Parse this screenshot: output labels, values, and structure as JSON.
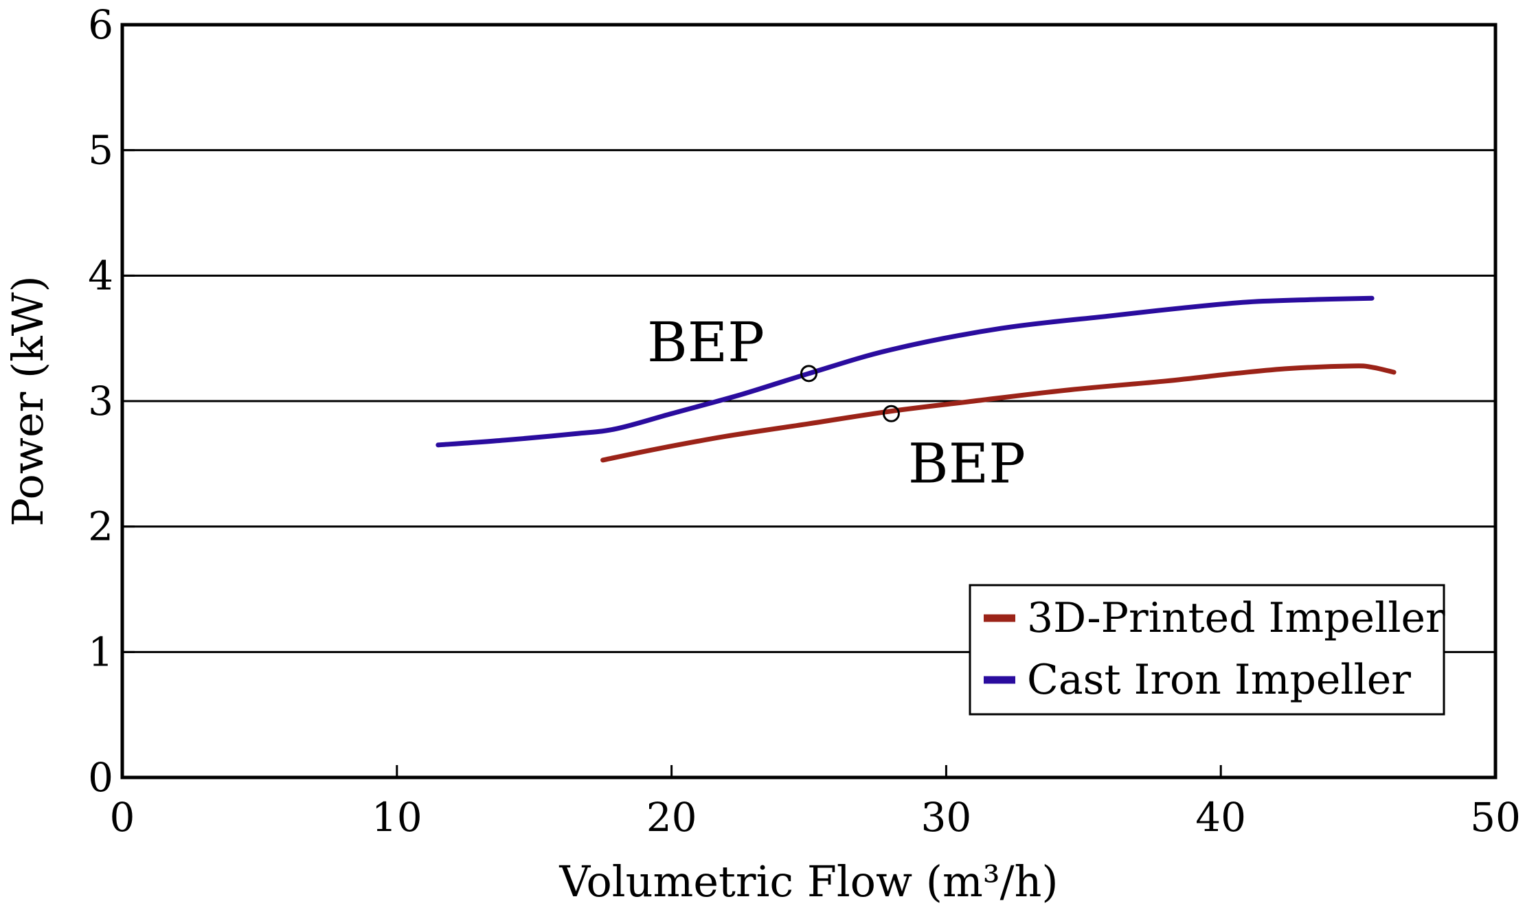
{
  "chart_data": {
    "type": "line",
    "title": "",
    "xlabel": "Volumetric Flow (m³/h)",
    "ylabel": "Power (kW)",
    "xlim": [
      0,
      50
    ],
    "ylim": [
      0,
      6
    ],
    "xticks": [
      "0",
      "10",
      "20",
      "30",
      "40",
      "50"
    ],
    "yticks": [
      "0",
      "1",
      "2",
      "3",
      "4",
      "5",
      "6"
    ],
    "grid": "horizontal",
    "legend_position": "bottom-right",
    "series": [
      {
        "name": "3D-Printed Impeller",
        "color": "#9b2318",
        "x": [
          17.5,
          19.5,
          22,
          25,
          28,
          31,
          34.5,
          38,
          40.5,
          42.5,
          44.8,
          45.5,
          46.3
        ],
        "y": [
          2.53,
          2.62,
          2.72,
          2.82,
          2.92,
          3.0,
          3.09,
          3.16,
          3.22,
          3.26,
          3.28,
          3.27,
          3.23
        ]
      },
      {
        "name": "Cast Iron Impeller",
        "color": "#2a0c9e",
        "x": [
          11.5,
          14,
          16.5,
          18,
          20,
          22.5,
          25,
          28,
          32,
          36,
          38.5,
          41,
          43.5,
          45.5
        ],
        "y": [
          2.65,
          2.69,
          2.74,
          2.78,
          2.9,
          3.05,
          3.22,
          3.41,
          3.58,
          3.68,
          3.74,
          3.79,
          3.81,
          3.82
        ]
      }
    ],
    "annotations": [
      {
        "text": "BEP",
        "series": "Cast Iron Impeller",
        "x": 25,
        "y": 3.22
      },
      {
        "text": "BEP",
        "series": "3D-Printed Impeller",
        "x": 28,
        "y": 2.9
      }
    ]
  }
}
